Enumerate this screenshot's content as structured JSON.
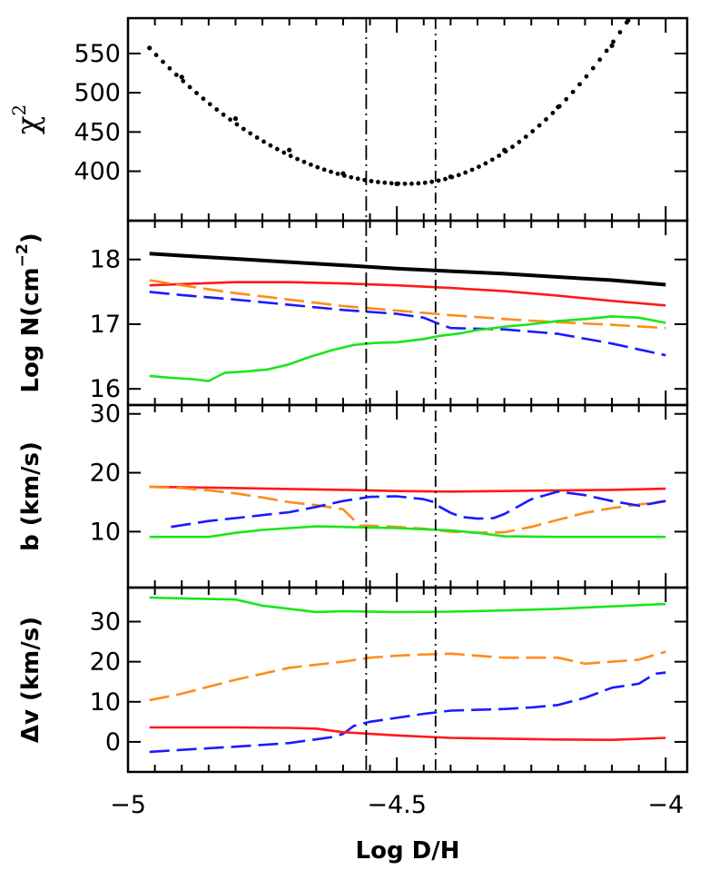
{
  "chart_data": {
    "type": "line",
    "xlabel": "Log D/H",
    "xlim": [
      -5,
      -3.96
    ],
    "xticks": [
      {
        "v": -5,
        "label": "−5"
      },
      {
        "v": -4.5,
        "label": "−4.5"
      },
      {
        "v": -4,
        "label": "−4"
      }
    ],
    "vlines": [
      {
        "x": -4.557,
        "style": "dashdot-long"
      },
      {
        "x": -4.428,
        "style": "dashdot"
      }
    ],
    "colors": {
      "black": "#000000",
      "red": "#ff1a1a",
      "orange": "#ff8c1a",
      "blue": "#1a1aff",
      "green": "#1ae61a"
    },
    "panels": [
      {
        "id": "chi2",
        "ylabel_base": "χ",
        "ylabel_sup": "2",
        "ylim": [
          337,
          595
        ],
        "yticks": [
          {
            "v": 400,
            "label": "400"
          },
          {
            "v": 450,
            "label": "450"
          },
          {
            "v": 500,
            "label": "500"
          },
          {
            "v": 550,
            "label": "550"
          }
        ],
        "series": [
          {
            "color": "black",
            "style": "dots",
            "width": 4,
            "x": [
              -4.96,
              -4.9,
              -4.8,
              -4.7,
              -4.6,
              -4.5,
              -4.4,
              -4.3,
              -4.2,
              -4.1,
              -4.07
            ],
            "y": [
              557,
              520,
              467,
              427,
              397,
              384,
              393,
              427,
              482,
              560,
              592
            ]
          }
        ]
      },
      {
        "id": "logN",
        "ylabel": "Log N(cm",
        "ylabel_sup": "−2",
        "ylabel_end": ")",
        "ylim": [
          15.75,
          18.6
        ],
        "yticks": [
          {
            "v": 16,
            "label": "16"
          },
          {
            "v": 17,
            "label": "17"
          },
          {
            "v": 18,
            "label": "18"
          }
        ],
        "series": [
          {
            "color": "black",
            "style": "solid",
            "width": 4,
            "x": [
              -4.96,
              -4.9,
              -4.8,
              -4.7,
              -4.6,
              -4.5,
              -4.4,
              -4.3,
              -4.2,
              -4.1,
              -4.0
            ],
            "y": [
              18.09,
              18.06,
              18.01,
              17.96,
              17.91,
              17.86,
              17.82,
              17.78,
              17.73,
              17.68,
              17.61
            ]
          },
          {
            "color": "red",
            "style": "solid",
            "width": 2.6,
            "x": [
              -4.96,
              -4.9,
              -4.8,
              -4.7,
              -4.6,
              -4.5,
              -4.4,
              -4.3,
              -4.2,
              -4.1,
              -4.0
            ],
            "y": [
              17.6,
              17.62,
              17.65,
              17.65,
              17.63,
              17.6,
              17.56,
              17.51,
              17.44,
              17.36,
              17.29
            ]
          },
          {
            "color": "orange",
            "style": "dashed",
            "width": 2.6,
            "x": [
              -4.96,
              -4.9,
              -4.8,
              -4.7,
              -4.6,
              -4.5,
              -4.4,
              -4.3,
              -4.2,
              -4.1,
              -4.0
            ],
            "y": [
              17.68,
              17.6,
              17.48,
              17.38,
              17.28,
              17.21,
              17.14,
              17.08,
              17.03,
              16.99,
              16.94
            ]
          },
          {
            "color": "blue",
            "style": "dashed",
            "width": 2.6,
            "x": [
              -4.96,
              -4.9,
              -4.8,
              -4.7,
              -4.6,
              -4.5,
              -4.45,
              -4.42,
              -4.4,
              -4.3,
              -4.2,
              -4.1,
              -4.0
            ],
            "y": [
              17.5,
              17.45,
              17.38,
              17.3,
              17.22,
              17.16,
              17.1,
              17.0,
              16.94,
              16.92,
              16.85,
              16.7,
              16.52
            ]
          },
          {
            "color": "green",
            "style": "solid",
            "width": 2.6,
            "x": [
              -4.96,
              -4.92,
              -4.88,
              -4.85,
              -4.82,
              -4.78,
              -4.74,
              -4.7,
              -4.66,
              -4.62,
              -4.58,
              -4.54,
              -4.5,
              -4.45,
              -4.42,
              -4.38,
              -4.35,
              -4.3,
              -4.25,
              -4.2,
              -4.15,
              -4.1,
              -4.05,
              -4.0
            ],
            "y": [
              16.2,
              16.17,
              16.15,
              16.12,
              16.25,
              16.27,
              16.3,
              16.38,
              16.5,
              16.6,
              16.68,
              16.71,
              16.72,
              16.77,
              16.82,
              16.86,
              16.91,
              16.96,
              17.0,
              17.05,
              17.08,
              17.12,
              17.1,
              17.02
            ]
          }
        ]
      },
      {
        "id": "b",
        "ylabel": "b (km/s)",
        "ylim": [
          0.5,
          31.5
        ],
        "yticks": [
          {
            "v": 10,
            "label": "10"
          },
          {
            "v": 20,
            "label": "20"
          },
          {
            "v": 30,
            "label": "30"
          }
        ],
        "series": [
          {
            "color": "red",
            "style": "solid",
            "width": 2.6,
            "x": [
              -4.96,
              -4.8,
              -4.6,
              -4.5,
              -4.4,
              -4.3,
              -4.2,
              -4.1,
              -4.0
            ],
            "y": [
              17.6,
              17.4,
              17.1,
              16.9,
              16.8,
              16.9,
              17.0,
              17.1,
              17.3
            ]
          },
          {
            "color": "orange",
            "style": "dashed",
            "width": 2.6,
            "x": [
              -4.96,
              -4.9,
              -4.85,
              -4.8,
              -4.75,
              -4.7,
              -4.65,
              -4.6,
              -4.58,
              -4.57,
              -4.55,
              -4.5,
              -4.45,
              -4.4,
              -4.35,
              -4.3,
              -4.25,
              -4.2,
              -4.15,
              -4.1,
              -4.05,
              -4.0
            ],
            "y": [
              17.6,
              17.4,
              17.0,
              16.5,
              15.8,
              15.0,
              14.5,
              13.8,
              12.0,
              11.0,
              11.0,
              10.8,
              10.5,
              10.0,
              9.8,
              9.9,
              10.8,
              12.0,
              13.2,
              14.0,
              14.6,
              15.2
            ]
          },
          {
            "color": "blue",
            "style": "dashed",
            "width": 2.6,
            "x": [
              -4.92,
              -4.85,
              -4.8,
              -4.75,
              -4.7,
              -4.65,
              -4.6,
              -4.55,
              -4.5,
              -4.45,
              -4.43,
              -4.42,
              -4.4,
              -4.38,
              -4.35,
              -4.32,
              -4.3,
              -4.28,
              -4.25,
              -4.2,
              -4.15,
              -4.1,
              -4.05,
              -4.0
            ],
            "y": [
              10.8,
              11.8,
              12.3,
              12.8,
              13.3,
              14.2,
              15.2,
              15.9,
              16.0,
              15.5,
              15.0,
              14.2,
              13.2,
              12.5,
              12.2,
              12.3,
              13.0,
              14.0,
              15.5,
              16.8,
              16.2,
              15.2,
              14.4,
              15.2
            ]
          },
          {
            "color": "green",
            "style": "solid",
            "width": 2.6,
            "x": [
              -4.96,
              -4.85,
              -4.8,
              -4.75,
              -4.7,
              -4.65,
              -4.6,
              -4.55,
              -4.5,
              -4.4,
              -4.35,
              -4.3,
              -4.2,
              -4.1,
              -4.0
            ],
            "y": [
              9.1,
              9.1,
              9.8,
              10.3,
              10.6,
              10.9,
              10.8,
              10.7,
              10.6,
              10.2,
              9.8,
              9.2,
              9.1,
              9.1,
              9.1
            ]
          }
        ]
      },
      {
        "id": "dv",
        "ylabel": "Δv (km/s)",
        "ylim": [
          -7.5,
          38.5
        ],
        "yticks": [
          {
            "v": 0,
            "label": "0"
          },
          {
            "v": 10,
            "label": "10"
          },
          {
            "v": 20,
            "label": "20"
          },
          {
            "v": 30,
            "label": "30"
          }
        ],
        "series": [
          {
            "color": "green",
            "style": "solid",
            "width": 2.6,
            "x": [
              -4.96,
              -4.9,
              -4.8,
              -4.75,
              -4.7,
              -4.65,
              -4.6,
              -4.5,
              -4.4,
              -4.3,
              -4.2,
              -4.1,
              -4.0
            ],
            "y": [
              36.0,
              35.8,
              35.5,
              34.0,
              33.2,
              32.4,
              32.6,
              32.4,
              32.5,
              32.8,
              33.2,
              33.8,
              34.4
            ]
          },
          {
            "color": "orange",
            "style": "dashed",
            "width": 2.6,
            "x": [
              -4.96,
              -4.9,
              -4.8,
              -4.7,
              -4.6,
              -4.55,
              -4.5,
              -4.45,
              -4.4,
              -4.3,
              -4.2,
              -4.15,
              -4.1,
              -4.05,
              -4.0
            ],
            "y": [
              10.4,
              12.0,
              15.5,
              18.5,
              20.0,
              21.0,
              21.5,
              21.8,
              22.0,
              21.0,
              21.0,
              19.5,
              20.0,
              20.5,
              22.5
            ]
          },
          {
            "color": "blue",
            "style": "dashed",
            "width": 2.6,
            "x": [
              -4.96,
              -4.9,
              -4.8,
              -4.7,
              -4.62,
              -4.6,
              -4.58,
              -4.55,
              -4.5,
              -4.45,
              -4.4,
              -4.35,
              -4.3,
              -4.25,
              -4.2,
              -4.15,
              -4.1,
              -4.05,
              -4.02,
              -4.0
            ],
            "y": [
              -2.5,
              -2.0,
              -1.2,
              -0.3,
              1.2,
              2.0,
              4.0,
              5.0,
              6.0,
              7.0,
              7.8,
              8.0,
              8.2,
              8.6,
              9.2,
              11.0,
              13.5,
              14.5,
              17.0,
              17.3
            ]
          },
          {
            "color": "red",
            "style": "solid",
            "width": 2.6,
            "x": [
              -4.96,
              -4.8,
              -4.7,
              -4.65,
              -4.6,
              -4.5,
              -4.4,
              -4.3,
              -4.2,
              -4.1,
              -4.0
            ],
            "y": [
              3.6,
              3.6,
              3.5,
              3.3,
              2.4,
              1.6,
              1.0,
              0.8,
              0.6,
              0.5,
              1.0
            ]
          }
        ]
      }
    ]
  }
}
